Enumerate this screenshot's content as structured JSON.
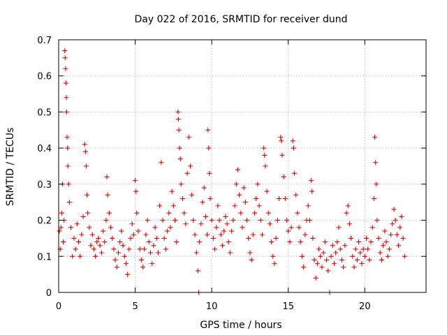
{
  "chart_data": {
    "type": "scatter",
    "title": "Day 022 of 2016, SRMTID for receiver dund",
    "xlabel": "GPS time / hours",
    "ylabel": "SRMTID / TECUs",
    "xlim": [
      0,
      24
    ],
    "ylim": [
      0,
      0.7
    ],
    "x_ticks": [
      0,
      5,
      10,
      15,
      20
    ],
    "y_ticks": [
      0,
      0.1,
      0.2,
      0.3,
      0.4,
      0.5,
      0.6,
      0.7
    ],
    "x_tick_labels": [
      "0",
      "5",
      "10",
      "15",
      "20"
    ],
    "y_tick_labels": [
      "0",
      "0.1",
      "0.2",
      "0.3",
      "0.4",
      "0.5",
      "0.6",
      "0.7"
    ],
    "grid": true,
    "marker": "+",
    "color": "#e00000",
    "series": [
      {
        "name": "dund",
        "points": [
          [
            0.05,
            0.17
          ],
          [
            0.1,
            0.12
          ],
          [
            0.15,
            0.18
          ],
          [
            0.2,
            0.22
          ],
          [
            0.25,
            0.3
          ],
          [
            0.3,
            0.14
          ],
          [
            0.35,
            0.2
          ],
          [
            0.4,
            0.67
          ],
          [
            0.42,
            0.65
          ],
          [
            0.45,
            0.62
          ],
          [
            0.48,
            0.58
          ],
          [
            0.5,
            0.54
          ],
          [
            0.52,
            0.5
          ],
          [
            0.55,
            0.43
          ],
          [
            0.58,
            0.4
          ],
          [
            0.6,
            0.35
          ],
          [
            0.65,
            0.3
          ],
          [
            0.7,
            0.25
          ],
          [
            0.8,
            0.18
          ],
          [
            0.9,
            0.1
          ],
          [
            1.0,
            0.15
          ],
          [
            1.1,
            0.12
          ],
          [
            1.2,
            0.19
          ],
          [
            1.3,
            0.14
          ],
          [
            1.4,
            0.1
          ],
          [
            1.5,
            0.16
          ],
          [
            1.6,
            0.21
          ],
          [
            1.7,
            0.41
          ],
          [
            1.75,
            0.39
          ],
          [
            1.8,
            0.35
          ],
          [
            1.85,
            0.27
          ],
          [
            1.9,
            0.22
          ],
          [
            2.0,
            0.18
          ],
          [
            2.1,
            0.13
          ],
          [
            2.2,
            0.16
          ],
          [
            2.3,
            0.12
          ],
          [
            2.4,
            0.1
          ],
          [
            2.5,
            0.14
          ],
          [
            2.6,
            0.15
          ],
          [
            2.7,
            0.13
          ],
          [
            2.8,
            0.11
          ],
          [
            2.9,
            0.17
          ],
          [
            3.0,
            0.14
          ],
          [
            3.1,
            0.2
          ],
          [
            3.15,
            0.32
          ],
          [
            3.2,
            0.27
          ],
          [
            3.3,
            0.22
          ],
          [
            3.4,
            0.18
          ],
          [
            3.5,
            0.15
          ],
          [
            3.6,
            0.12
          ],
          [
            3.7,
            0.09
          ],
          [
            3.8,
            0.07
          ],
          [
            3.9,
            0.11
          ],
          [
            4.0,
            0.14
          ],
          [
            4.1,
            0.17
          ],
          [
            4.2,
            0.13
          ],
          [
            4.3,
            0.1
          ],
          [
            4.4,
            0.08
          ],
          [
            4.5,
            0.05
          ],
          [
            4.6,
            0.12
          ],
          [
            4.7,
            0.15
          ],
          [
            4.8,
            0.19
          ],
          [
            4.9,
            0.16
          ],
          [
            5.0,
            0.31
          ],
          [
            5.05,
            0.28
          ],
          [
            5.1,
            0.22
          ],
          [
            5.2,
            0.17
          ],
          [
            5.3,
            0.12
          ],
          [
            5.4,
            0.09
          ],
          [
            5.5,
            0.07
          ],
          [
            5.6,
            0.12
          ],
          [
            5.7,
            0.16
          ],
          [
            5.8,
            0.2
          ],
          [
            5.9,
            0.14
          ],
          [
            6.0,
            0.11
          ],
          [
            6.1,
            0.08
          ],
          [
            6.2,
            0.13
          ],
          [
            6.3,
            0.18
          ],
          [
            6.4,
            0.15
          ],
          [
            6.5,
            0.11
          ],
          [
            6.6,
            0.24
          ],
          [
            6.7,
            0.36
          ],
          [
            6.8,
            0.2
          ],
          [
            6.9,
            0.15
          ],
          [
            7.0,
            0.12
          ],
          [
            7.1,
            0.17
          ],
          [
            7.2,
            0.22
          ],
          [
            7.3,
            0.18
          ],
          [
            7.4,
            0.28
          ],
          [
            7.5,
            0.24
          ],
          [
            7.6,
            0.2
          ],
          [
            7.7,
            0.14
          ],
          [
            7.8,
            0.5
          ],
          [
            7.82,
            0.48
          ],
          [
            7.85,
            0.45
          ],
          [
            7.9,
            0.4
          ],
          [
            7.95,
            0.37
          ],
          [
            8.0,
            0.3
          ],
          [
            8.1,
            0.26
          ],
          [
            8.2,
            0.22
          ],
          [
            8.3,
            0.19
          ],
          [
            8.4,
            0.33
          ],
          [
            8.5,
            0.43
          ],
          [
            8.6,
            0.35
          ],
          [
            8.7,
            0.27
          ],
          [
            8.8,
            0.2
          ],
          [
            8.9,
            0.16
          ],
          [
            9.0,
            0.11
          ],
          [
            9.1,
            0.06
          ],
          [
            9.15,
            0.0
          ],
          [
            9.2,
            0.14
          ],
          [
            9.3,
            0.19
          ],
          [
            9.4,
            0.25
          ],
          [
            9.5,
            0.29
          ],
          [
            9.6,
            0.21
          ],
          [
            9.7,
            0.16
          ],
          [
            9.75,
            0.45
          ],
          [
            9.8,
            0.4
          ],
          [
            9.85,
            0.33
          ],
          [
            9.9,
            0.26
          ],
          [
            10.0,
            0.2
          ],
          [
            10.1,
            0.15
          ],
          [
            10.2,
            0.12
          ],
          [
            10.3,
            0.18
          ],
          [
            10.4,
            0.24
          ],
          [
            10.5,
            0.2
          ],
          [
            10.6,
            0.16
          ],
          [
            10.7,
            0.13
          ],
          [
            10.8,
            0.17
          ],
          [
            10.9,
            0.21
          ],
          [
            11.0,
            0.19
          ],
          [
            11.1,
            0.14
          ],
          [
            11.2,
            0.11
          ],
          [
            11.3,
            0.17
          ],
          [
            11.4,
            0.2
          ],
          [
            11.5,
            0.24
          ],
          [
            11.6,
            0.3
          ],
          [
            11.7,
            0.34
          ],
          [
            11.8,
            0.27
          ],
          [
            11.9,
            0.22
          ],
          [
            12.0,
            0.18
          ],
          [
            12.1,
            0.29
          ],
          [
            12.2,
            0.25
          ],
          [
            12.3,
            0.2
          ],
          [
            12.4,
            0.15
          ],
          [
            12.5,
            0.11
          ],
          [
            12.6,
            0.09
          ],
          [
            12.7,
            0.16
          ],
          [
            12.8,
            0.22
          ],
          [
            12.9,
            0.26
          ],
          [
            13.0,
            0.3
          ],
          [
            13.1,
            0.24
          ],
          [
            13.2,
            0.2
          ],
          [
            13.3,
            0.16
          ],
          [
            13.4,
            0.4
          ],
          [
            13.45,
            0.38
          ],
          [
            13.5,
            0.35
          ],
          [
            13.6,
            0.28
          ],
          [
            13.7,
            0.22
          ],
          [
            13.8,
            0.19
          ],
          [
            13.9,
            0.14
          ],
          [
            14.0,
            0.1
          ],
          [
            14.1,
            0.08
          ],
          [
            14.2,
            0.15
          ],
          [
            14.3,
            0.2
          ],
          [
            14.4,
            0.26
          ],
          [
            14.5,
            0.43
          ],
          [
            14.55,
            0.42
          ],
          [
            14.6,
            0.38
          ],
          [
            14.7,
            0.32
          ],
          [
            14.8,
            0.26
          ],
          [
            14.9,
            0.2
          ],
          [
            15.0,
            0.17
          ],
          [
            15.1,
            0.14
          ],
          [
            15.2,
            0.18
          ],
          [
            15.3,
            0.42
          ],
          [
            15.35,
            0.4
          ],
          [
            15.4,
            0.33
          ],
          [
            15.5,
            0.27
          ],
          [
            15.6,
            0.22
          ],
          [
            15.7,
            0.18
          ],
          [
            15.8,
            0.14
          ],
          [
            15.9,
            0.1
          ],
          [
            16.0,
            0.07
          ],
          [
            16.1,
            0.16
          ],
          [
            16.2,
            0.2
          ],
          [
            16.3,
            0.24
          ],
          [
            16.4,
            0.2
          ],
          [
            16.5,
            0.31
          ],
          [
            16.55,
            0.28
          ],
          [
            16.6,
            0.15
          ],
          [
            16.7,
            0.09
          ],
          [
            16.8,
            0.04
          ],
          [
            16.9,
            0.08
          ],
          [
            17.0,
            0.12
          ],
          [
            17.1,
            0.1
          ],
          [
            17.2,
            0.07
          ],
          [
            17.3,
            0.11
          ],
          [
            17.4,
            0.14
          ],
          [
            17.5,
            0.09
          ],
          [
            17.6,
            0.06
          ],
          [
            17.7,
            0.0
          ],
          [
            17.8,
            0.1
          ],
          [
            17.9,
            0.13
          ],
          [
            18.0,
            0.08
          ],
          [
            18.1,
            0.11
          ],
          [
            18.2,
            0.14
          ],
          [
            18.3,
            0.18
          ],
          [
            18.4,
            0.12
          ],
          [
            18.5,
            0.09
          ],
          [
            18.6,
            0.07
          ],
          [
            18.7,
            0.13
          ],
          [
            18.8,
            0.22
          ],
          [
            18.9,
            0.24
          ],
          [
            19.0,
            0.19
          ],
          [
            19.1,
            0.15
          ],
          [
            19.2,
            0.1
          ],
          [
            19.3,
            0.07
          ],
          [
            19.4,
            0.12
          ],
          [
            19.5,
            0.09
          ],
          [
            19.6,
            0.14
          ],
          [
            19.7,
            0.11
          ],
          [
            19.8,
            0.08
          ],
          [
            19.9,
            0.12
          ],
          [
            20.0,
            0.1
          ],
          [
            20.1,
            0.15
          ],
          [
            20.2,
            0.12
          ],
          [
            20.3,
            0.09
          ],
          [
            20.4,
            0.14
          ],
          [
            20.5,
            0.18
          ],
          [
            20.6,
            0.26
          ],
          [
            20.65,
            0.43
          ],
          [
            20.7,
            0.36
          ],
          [
            20.75,
            0.3
          ],
          [
            20.8,
            0.2
          ],
          [
            20.9,
            0.15
          ],
          [
            21.0,
            0.11
          ],
          [
            21.1,
            0.09
          ],
          [
            21.2,
            0.13
          ],
          [
            21.3,
            0.17
          ],
          [
            21.4,
            0.14
          ],
          [
            21.5,
            0.1
          ],
          [
            21.6,
            0.12
          ],
          [
            21.7,
            0.16
          ],
          [
            21.8,
            0.19
          ],
          [
            21.9,
            0.23
          ],
          [
            22.0,
            0.2
          ],
          [
            22.1,
            0.16
          ],
          [
            22.2,
            0.13
          ],
          [
            22.3,
            0.18
          ],
          [
            22.4,
            0.21
          ],
          [
            22.5,
            0.15
          ],
          [
            22.6,
            0.1
          ]
        ]
      }
    ]
  }
}
